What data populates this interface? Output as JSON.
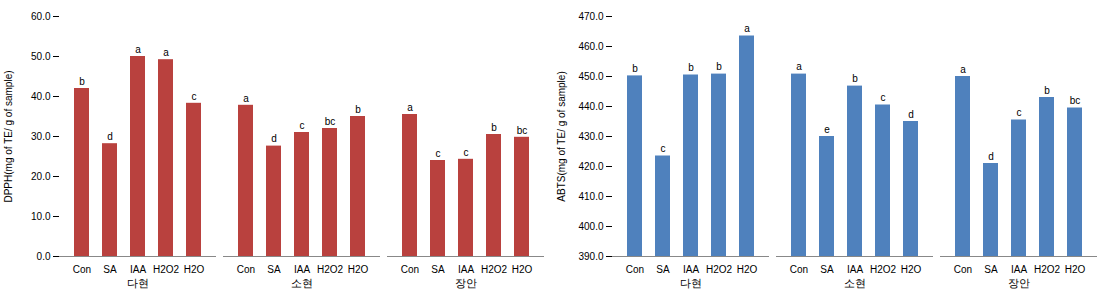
{
  "chart_data": [
    {
      "type": "bar",
      "ylabel": "DPPH(mg of TE/ g of sample)",
      "groups": [
        "다현",
        "소현",
        "장안"
      ],
      "categories": [
        "Con",
        "SA",
        "IAA",
        "H2O2",
        "H2O"
      ],
      "values": [
        [
          42.0,
          28.2,
          50.0,
          49.2,
          38.3
        ],
        [
          37.8,
          27.6,
          31.0,
          32.0,
          35.0
        ],
        [
          35.5,
          24.0,
          24.3,
          30.5,
          29.8
        ]
      ],
      "annotations": [
        [
          "b",
          "d",
          "a",
          "a",
          "c"
        ],
        [
          "a",
          "d",
          "c",
          "bc",
          "b"
        ],
        [
          "a",
          "c",
          "c",
          "b",
          "bc"
        ]
      ],
      "color": "#b9413e",
      "ylim": [
        0,
        60
      ],
      "yticks": [
        {
          "value": 0,
          "label": "0.0"
        },
        {
          "value": 10,
          "label": "10.0"
        },
        {
          "value": 20,
          "label": "20.0"
        },
        {
          "value": 30,
          "label": "30.0"
        },
        {
          "value": 40,
          "label": "40.0"
        },
        {
          "value": 50,
          "label": "50.0"
        },
        {
          "value": 60,
          "label": "60.0"
        }
      ],
      "grid": false
    },
    {
      "type": "bar",
      "ylabel": "ABTS(mg of TE/ g of sample)",
      "groups": [
        "다현",
        "소현",
        "장안"
      ],
      "categories": [
        "Con",
        "SA",
        "IAA",
        "H2O2",
        "H2O"
      ],
      "values": [
        [
          450.2,
          423.5,
          450.5,
          450.8,
          463.5
        ],
        [
          450.8,
          430.0,
          446.8,
          440.5,
          435.0
        ],
        [
          450.0,
          421.0,
          435.5,
          443.0,
          439.5
        ]
      ],
      "annotations": [
        [
          "b",
          "c",
          "b",
          "b",
          "a"
        ],
        [
          "a",
          "e",
          "b",
          "c",
          "d"
        ],
        [
          "a",
          "d",
          "c",
          "b",
          "bc"
        ]
      ],
      "color": "#4f81bd",
      "ylim": [
        390,
        470
      ],
      "yticks": [
        {
          "value": 390,
          "label": "390.0"
        },
        {
          "value": 400,
          "label": "400.0"
        },
        {
          "value": 410,
          "label": "410.0"
        },
        {
          "value": 420,
          "label": "420.0"
        },
        {
          "value": 430,
          "label": "430.0"
        },
        {
          "value": 440,
          "label": "440.0"
        },
        {
          "value": 450,
          "label": "450.0"
        },
        {
          "value": 460,
          "label": "460.0"
        },
        {
          "value": 470,
          "label": "470.0"
        }
      ],
      "grid": false
    }
  ]
}
